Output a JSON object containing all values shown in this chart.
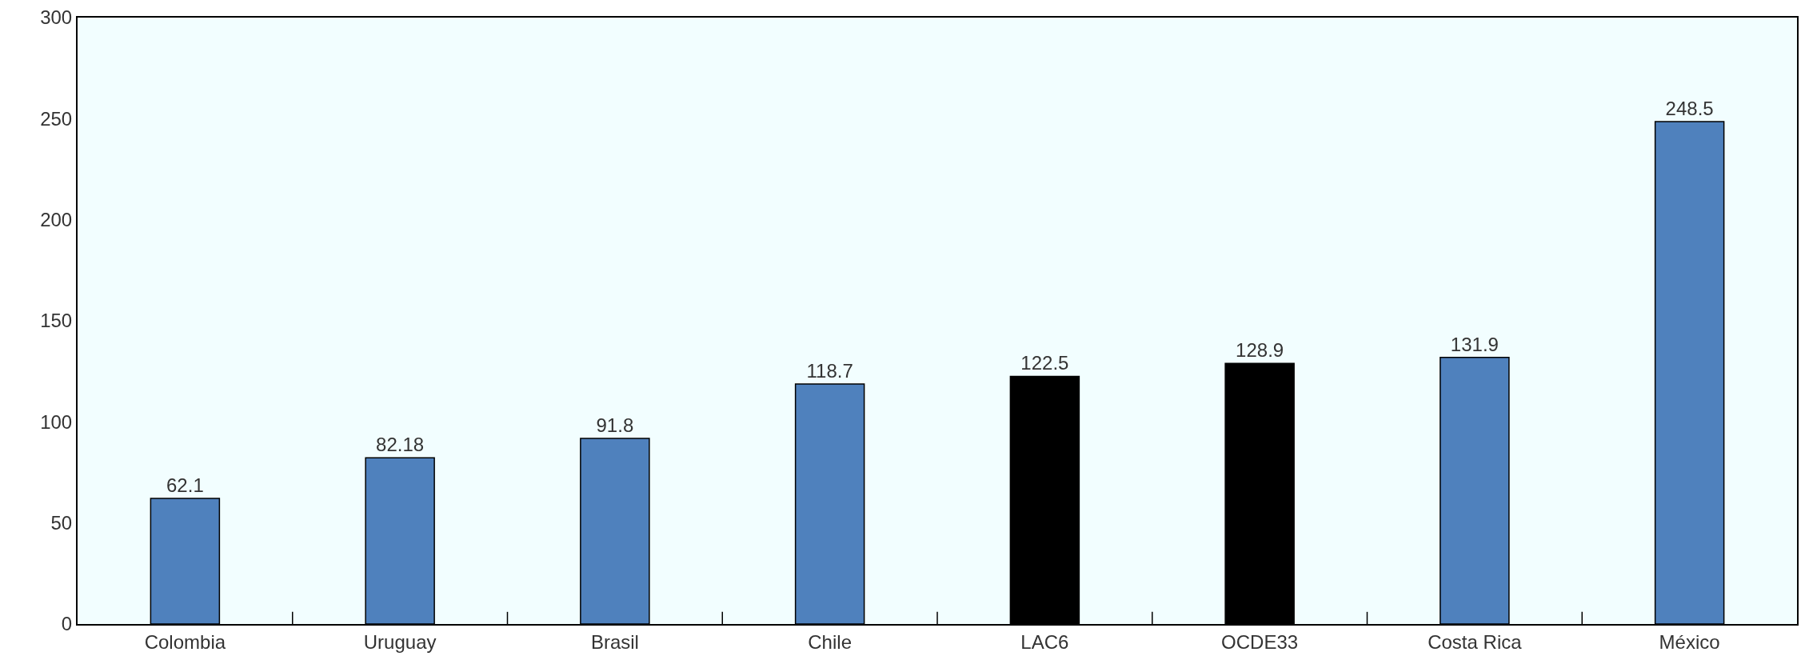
{
  "chart_data": {
    "type": "bar",
    "categories": [
      "Colombia",
      "Uruguay",
      "Brasil",
      "Chile",
      "LAC6",
      "OCDE33",
      "Costa Rica",
      "México"
    ],
    "values": [
      62.1,
      82.18,
      91.8,
      118.7,
      122.5,
      128.9,
      131.9,
      248.5
    ],
    "colors": [
      "#4f81bd",
      "#4f81bd",
      "#4f81bd",
      "#4f81bd",
      "#000000",
      "#000000",
      "#4f81bd",
      "#4f81bd"
    ],
    "data_labels": true,
    "ylim": [
      0,
      300
    ],
    "yticks": [
      0,
      50,
      100,
      150,
      200,
      250,
      300
    ],
    "grid": false
  }
}
